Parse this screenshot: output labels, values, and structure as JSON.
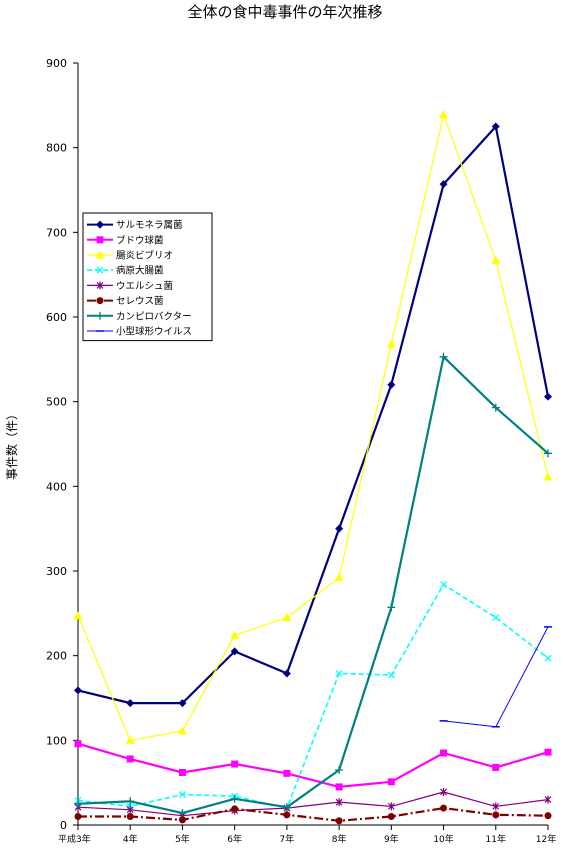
{
  "chart_data": {
    "type": "line",
    "title": "全体の食中毒事件の年次推移",
    "ylabel": "事件数（件）",
    "xlabel": "",
    "categories": [
      "平成3年",
      "4年",
      "5年",
      "6年",
      "7年",
      "8年",
      "9年",
      "10年",
      "11年",
      "12年"
    ],
    "ylim": [
      0,
      900
    ],
    "yticks": [
      0,
      100,
      200,
      300,
      400,
      500,
      600,
      700,
      800,
      900
    ],
    "grid": false,
    "legend_position": "upper-left",
    "series": [
      {
        "name": "サルモネラ属菌",
        "color": "#000080",
        "marker": "diamond",
        "dash": "solid",
        "width": 2.2,
        "values": [
          159,
          144,
          144,
          205,
          179,
          350,
          520,
          757,
          825,
          506
        ]
      },
      {
        "name": "ブドウ球菌",
        "color": "#ff00ff",
        "marker": "square",
        "dash": "solid",
        "width": 2.2,
        "values": [
          96,
          78,
          62,
          72,
          61,
          45,
          51,
          85,
          68,
          86
        ]
      },
      {
        "name": "腸炎ビブリオ",
        "color": "#ffff00",
        "marker": "triangle",
        "dash": "solid",
        "width": 1.2,
        "values": [
          247,
          100,
          111,
          224,
          245,
          292,
          568,
          839,
          667,
          411
        ]
      },
      {
        "name": "病原大腸菌",
        "color": "#00ffff",
        "marker": "x",
        "dash": "dashed",
        "width": 1.6,
        "values": [
          29,
          22,
          36,
          34,
          20,
          179,
          177,
          284,
          245,
          197
        ]
      },
      {
        "name": "ウエルシュ菌",
        "color": "#800080",
        "marker": "star",
        "dash": "solid",
        "width": 1.2,
        "values": [
          21,
          18,
          11,
          17,
          20,
          27,
          22,
          39,
          22,
          30
        ]
      },
      {
        "name": "セレウス菌",
        "color": "#800000",
        "marker": "circle",
        "dash": "dashdot",
        "width": 2.2,
        "values": [
          10,
          10,
          6,
          19,
          12,
          5,
          10,
          20,
          12,
          11
        ]
      },
      {
        "name": "カンピロバクター",
        "color": "#008080",
        "marker": "plus",
        "dash": "solid",
        "width": 2.2,
        "values": [
          25,
          28,
          14,
          31,
          21,
          65,
          257,
          553,
          493,
          439
        ]
      },
      {
        "name": "小型球形ウイルス",
        "color": "#0000ff",
        "marker": "dash",
        "dash": "solid",
        "width": 1,
        "values": [
          null,
          null,
          null,
          null,
          null,
          null,
          null,
          123,
          116,
          234
        ]
      }
    ]
  }
}
